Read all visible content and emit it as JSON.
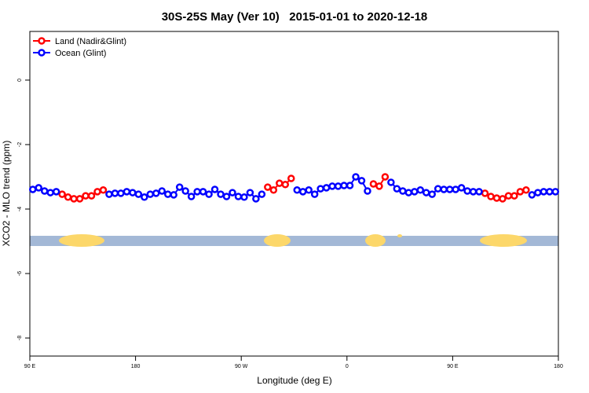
{
  "chart_data": {
    "type": "line",
    "title": "30S-25S May (Ver 10)   2015-01-01 to 2020-12-18",
    "x_label": "Longitude (deg E)",
    "y_label": "XCO2 - MLO trend (ppm)",
    "xlim": [
      90,
      540
    ],
    "ylim": [
      -8.56,
      1.51
    ],
    "xticks": [
      {
        "value": 90,
        "label": "90 E"
      },
      {
        "value": 180,
        "label": "180"
      },
      {
        "value": 270,
        "label": "90 W"
      },
      {
        "value": 360,
        "label": "0"
      },
      {
        "value": 450,
        "label": "90 E"
      },
      {
        "value": 540,
        "label": "180"
      }
    ],
    "yticks": [
      0,
      -2,
      -4,
      -6,
      -8
    ],
    "legend": "top-left",
    "x": [
      92.5,
      97.5,
      102.5,
      107.5,
      112.5,
      117.5,
      122.5,
      127.5,
      132.5,
      137.5,
      142.5,
      147.5,
      152.5,
      157.5,
      162.5,
      167.5,
      172.5,
      177.5,
      182.5,
      187.5,
      192.5,
      197.5,
      202.5,
      207.5,
      212.5,
      217.5,
      222.5,
      227.5,
      232.5,
      237.5,
      242.5,
      247.5,
      252.5,
      257.5,
      262.5,
      267.5,
      272.5,
      277.5,
      282.5,
      287.5,
      292.5,
      297.5,
      302.5,
      307.5,
      312.5,
      317.5,
      322.5,
      327.5,
      332.5,
      337.5,
      342.5,
      347.5,
      352.5,
      357.5,
      362.5,
      367.5,
      372.5,
      377.5,
      382.5,
      387.5,
      392.5,
      397.5,
      402.5,
      407.5,
      412.5,
      417.5,
      422.5,
      427.5,
      432.5,
      437.5,
      442.5,
      447.5,
      452.5,
      457.5,
      462.5,
      467.5,
      472.5,
      477.5,
      482.5,
      487.5,
      492.5,
      497.5,
      502.5,
      507.5,
      512.5,
      517.5,
      522.5,
      527.5,
      532.5,
      537.5
    ],
    "series": [
      {
        "name": "Land (Nadir&Glint)",
        "color": "#ff0000",
        "values": [
          null,
          null,
          null,
          null,
          null,
          -3.54,
          -3.63,
          -3.68,
          -3.68,
          -3.59,
          -3.59,
          -3.46,
          -3.41,
          null,
          null,
          null,
          null,
          null,
          null,
          null,
          null,
          null,
          null,
          null,
          null,
          null,
          null,
          null,
          null,
          null,
          null,
          null,
          null,
          null,
          null,
          null,
          null,
          null,
          null,
          null,
          -3.32,
          -3.41,
          -3.2,
          -3.24,
          -3.05,
          null,
          null,
          null,
          null,
          null,
          null,
          null,
          null,
          null,
          null,
          null,
          null,
          null,
          -3.22,
          -3.29,
          -3.0,
          null,
          null,
          null,
          null,
          null,
          null,
          null,
          null,
          null,
          null,
          null,
          null,
          null,
          null,
          null,
          null,
          -3.51,
          -3.61,
          -3.66,
          -3.68,
          -3.59,
          -3.59,
          -3.46,
          -3.41,
          null,
          null,
          null,
          null,
          null
        ]
      },
      {
        "name": "Ocean (Glint)",
        "color": "#0000ff",
        "values": [
          -3.39,
          -3.34,
          -3.44,
          -3.49,
          -3.46,
          null,
          null,
          null,
          null,
          null,
          null,
          null,
          null,
          -3.54,
          -3.51,
          -3.51,
          -3.46,
          -3.49,
          -3.54,
          -3.63,
          -3.54,
          -3.51,
          -3.44,
          -3.54,
          -3.56,
          -3.32,
          -3.44,
          -3.61,
          -3.46,
          -3.46,
          -3.54,
          -3.39,
          -3.54,
          -3.61,
          -3.49,
          -3.61,
          -3.63,
          -3.49,
          -3.68,
          -3.54,
          null,
          null,
          null,
          null,
          null,
          -3.41,
          -3.46,
          -3.41,
          -3.54,
          -3.37,
          -3.34,
          -3.29,
          -3.29,
          -3.27,
          -3.27,
          -3.0,
          -3.12,
          -3.44,
          null,
          null,
          null,
          -3.17,
          -3.37,
          -3.44,
          -3.49,
          -3.46,
          -3.41,
          -3.49,
          -3.54,
          -3.37,
          -3.39,
          -3.39,
          -3.39,
          -3.34,
          -3.44,
          -3.46,
          -3.46,
          null,
          null,
          null,
          null,
          null,
          null,
          null,
          null,
          -3.56,
          -3.49,
          -3.46,
          -3.46,
          -3.46
        ]
      }
    ]
  }
}
